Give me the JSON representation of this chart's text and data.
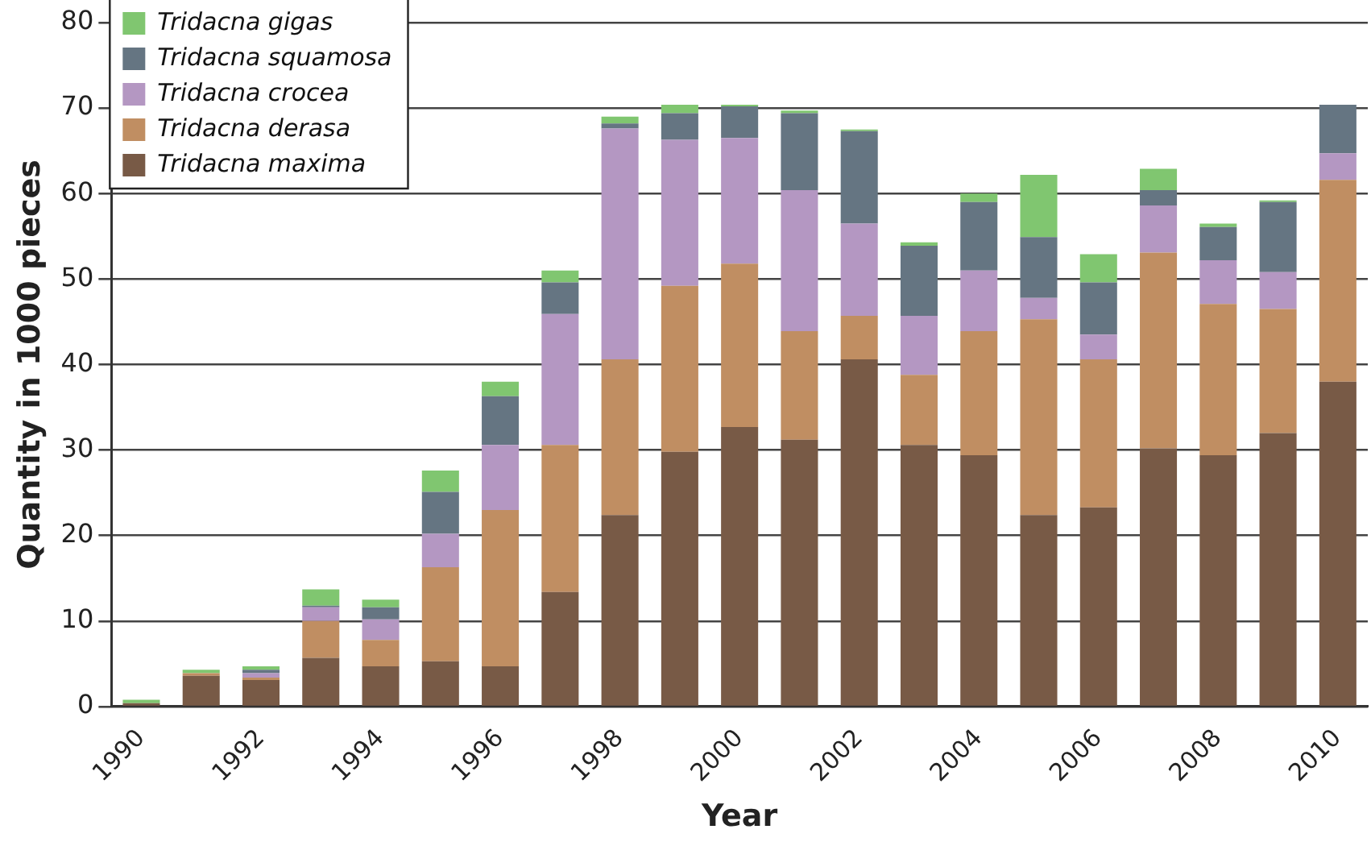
{
  "chart_data": {
    "type": "bar",
    "stacked": true,
    "xlabel": "Year",
    "ylabel": "Quantity in 1000 pieces",
    "categories": [
      "1990",
      null,
      "1992",
      null,
      "1994",
      null,
      "1996",
      null,
      "1998",
      null,
      "2000",
      null,
      "2002",
      null,
      "2004",
      null,
      "2006",
      null,
      "2008",
      null,
      "2010"
    ],
    "series": [
      {
        "name": "Tridacna maxima",
        "color": "#785a46",
        "values": [
          0.4,
          3.6,
          3.1,
          5.7,
          4.7,
          5.3,
          4.7,
          13.4,
          22.4,
          29.8,
          32.7,
          31.2,
          40.6,
          30.6,
          29.4,
          22.4,
          23.3,
          30.2,
          29.4,
          32.0,
          38.0
        ]
      },
      {
        "name": "Tridacna derasa",
        "color": "#c08e62",
        "values": [
          0,
          0.3,
          0.3,
          4.3,
          3.1,
          11.0,
          18.3,
          17.2,
          18.2,
          19.4,
          19.1,
          12.7,
          5.1,
          8.2,
          14.5,
          22.9,
          17.3,
          22.9,
          17.7,
          14.5,
          23.6
        ]
      },
      {
        "name": "Tridacna crocea",
        "color": "#b497c2",
        "values": [
          0,
          0,
          0.5,
          1.6,
          2.4,
          3.9,
          7.6,
          15.3,
          27.0,
          17.1,
          14.7,
          16.5,
          10.8,
          6.9,
          7.1,
          2.5,
          2.9,
          5.5,
          5.1,
          4.3,
          3.1
        ]
      },
      {
        "name": "Tridacna squamosa",
        "color": "#657582",
        "values": [
          0,
          0,
          0.4,
          0.2,
          1.4,
          4.9,
          5.7,
          3.7,
          0.6,
          3.1,
          3.7,
          9.0,
          10.8,
          8.2,
          8.0,
          7.1,
          6.1,
          1.8,
          3.9,
          8.2,
          5.7
        ]
      },
      {
        "name": "Tridacna gigas",
        "color": "#80c670",
        "values": [
          0.4,
          0.4,
          0.4,
          1.9,
          0.9,
          2.5,
          1.7,
          1.4,
          0.8,
          1.0,
          0.2,
          0.3,
          0.2,
          0.4,
          1.0,
          7.3,
          3.3,
          2.5,
          0.4,
          0.2,
          0
        ]
      }
    ],
    "ylim": [
      0,
      80
    ],
    "yticks": [
      0,
      10,
      20,
      30,
      40,
      50,
      60,
      70,
      80
    ],
    "grid": "y",
    "legend": "top left"
  }
}
